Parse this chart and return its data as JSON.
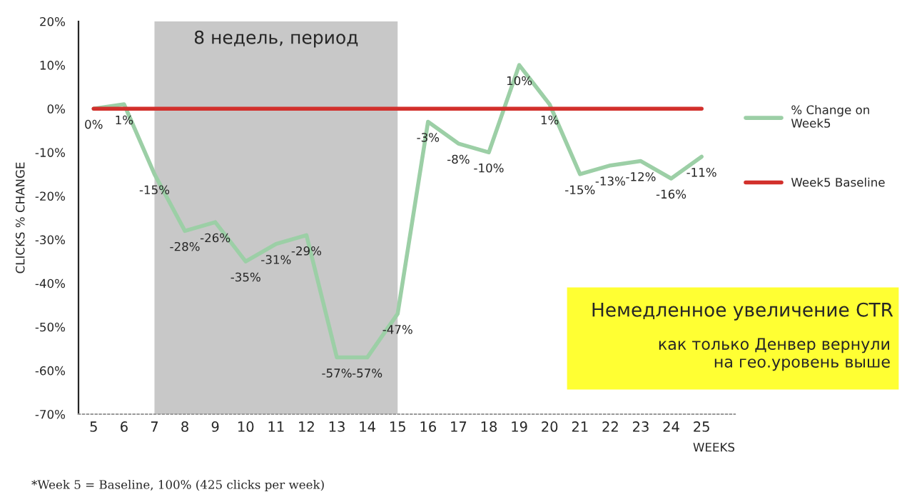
{
  "chart_data": {
    "type": "line",
    "xlabel": "WEEKS",
    "ylabel": "CLICKS % CHANGE",
    "categories": [
      "5",
      "6",
      "7",
      "8",
      "9",
      "10",
      "11",
      "12",
      "13",
      "14",
      "15",
      "16",
      "17",
      "18",
      "19",
      "20",
      "21",
      "22",
      "23",
      "24",
      "25"
    ],
    "series": [
      {
        "name": "% Change on Week5",
        "color": "#9ccfa6",
        "values": [
          0,
          1,
          -15,
          -28,
          -26,
          -35,
          -31,
          -29,
          -57,
          -57,
          -47,
          -3,
          -8,
          -10,
          10,
          1,
          -15,
          -13,
          -12,
          -16,
          -11
        ],
        "value_labels": [
          "0%",
          "1%",
          "-15%",
          "-28%",
          "-26%",
          "-35%",
          "-31%",
          "-29%",
          "-57%",
          "-57%",
          "-47%",
          "-3%",
          "-8%",
          "-10%",
          "10%",
          "1%",
          "-15%",
          "-13%",
          "-12%",
          "-16%",
          "-11%"
        ]
      },
      {
        "name": "Week5 Baseline",
        "color": "#d2302c",
        "values": [
          0,
          0,
          0,
          0,
          0,
          0,
          0,
          0,
          0,
          0,
          0,
          0,
          0,
          0,
          0,
          0,
          0,
          0,
          0,
          0,
          0
        ]
      }
    ],
    "ylim": [
      -70,
      20
    ],
    "yticks": [
      {
        "value": 20,
        "label": "20%"
      },
      {
        "value": 10,
        "label": "10%"
      },
      {
        "value": 0,
        "label": "0%"
      },
      {
        "value": -10,
        "label": "-10%"
      },
      {
        "value": -20,
        "label": "-20%"
      },
      {
        "value": -30,
        "label": "-30%"
      },
      {
        "value": -40,
        "label": "-40%"
      },
      {
        "value": -50,
        "label": "-50%"
      },
      {
        "value": -60,
        "label": "-60%"
      },
      {
        "value": -70,
        "label": "-70%"
      }
    ],
    "bands": [
      {
        "axis": "x",
        "from": "7",
        "to": "15",
        "label": "8 недель, период",
        "color": "#c8c8c8"
      }
    ],
    "annotations": [
      "Немедленное увеличение CTR",
      "как только Денвер вернули\nна гео.уровень выше",
      "*Week 5 = Baseline, 100% (425 clicks per week)"
    ],
    "legend": "right",
    "grid": false,
    "marker": "none",
    "line_style": "solid"
  }
}
